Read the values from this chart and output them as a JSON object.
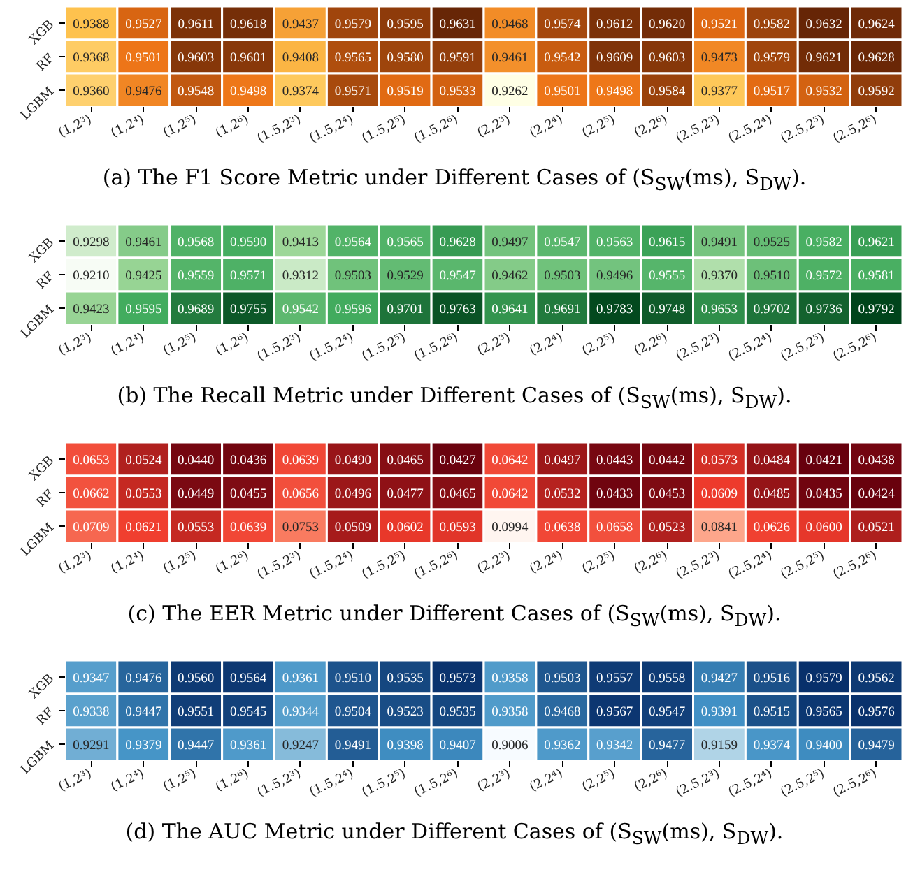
{
  "chart_data": [
    {
      "type": "heatmap",
      "title": "(a) The F1 Score Metric under Different Cases of (S$_{SW}$(ms), S$_{DW}$).",
      "colors": [
        "#ffffe5",
        "#fec44f",
        "#ec7014",
        "#662506"
      ],
      "categories": [
        "(1,2³)",
        "(1,2⁴)",
        "(1,2⁵)",
        "(1,2⁶)",
        "(1.5,2³)",
        "(1.5,2⁴)",
        "(1.5,2⁵)",
        "(1.5,2⁶)",
        "(2,2³)",
        "(2,2⁴)",
        "(2,2⁵)",
        "(2,2⁶)",
        "(2.5,2³)",
        "(2.5,2⁴)",
        "(2.5,2⁵)",
        "(2.5,2⁶)"
      ],
      "y_categories": [
        "XGB",
        "RF",
        "LGBM"
      ],
      "cells": [
        [
          0.9388,
          0.9527,
          0.9611,
          0.9618,
          0.9437,
          0.9579,
          0.9595,
          0.9631,
          0.9468,
          0.9574,
          0.9612,
          0.962,
          0.9521,
          0.9582,
          0.9632,
          0.9624
        ],
        [
          0.9368,
          0.9501,
          0.9603,
          0.9601,
          0.9408,
          0.9565,
          0.958,
          0.9591,
          0.9461,
          0.9542,
          0.9609,
          0.9603,
          0.9473,
          0.9579,
          0.9621,
          0.9628
        ],
        [
          0.936,
          0.9476,
          0.9548,
          0.9498,
          0.9374,
          0.9571,
          0.9519,
          0.9533,
          0.9262,
          0.9501,
          0.9498,
          0.9584,
          0.9377,
          0.9517,
          0.9532,
          0.9592
        ]
      ],
      "cell_labels": [
        [
          "0.9388",
          "0.9527",
          "0.9611",
          "0.9618",
          "0.9437",
          "0.9579",
          "0.9595",
          "0.9631",
          "0.9468",
          "0.9574",
          "0.9612",
          "0.9620",
          "0.9521",
          "0.9582",
          "0.9632",
          "0.9624"
        ],
        [
          "0.9368",
          "0.9501",
          "0.9603",
          "0.9601",
          "0.9408",
          "0.9565",
          "0.9580",
          "0.9591",
          "0.9461",
          "0.9542",
          "0.9609",
          "0.9603",
          "0.9473",
          "0.9579",
          "0.9621",
          "0.9628"
        ],
        [
          "0.9360",
          "0.9476",
          "0.9548",
          "0.9498",
          "0.9374",
          "0.9571",
          "0.9519",
          "0.9533",
          "0.9262",
          "0.9501",
          "0.9498",
          "0.9584",
          "0.9377",
          "0.9517",
          "0.9532",
          "0.9592"
        ]
      ]
    },
    {
      "type": "heatmap",
      "title": "(b) The Recall Metric under Different Cases of (S$_{SW}$(ms), S$_{DW}$).",
      "colors": [
        "#f7fcf5",
        "#a1d99b",
        "#41ab5d",
        "#00441b"
      ],
      "categories": [
        "(1,2³)",
        "(1,2⁴)",
        "(1,2⁵)",
        "(1,2⁶)",
        "(1.5,2³)",
        "(1.5,2⁴)",
        "(1.5,2⁵)",
        "(1.5,2⁶)",
        "(2,2³)",
        "(2,2⁴)",
        "(2,2⁵)",
        "(2,2⁶)",
        "(2.5,2³)",
        "(2.5,2⁴)",
        "(2.5,2⁵)",
        "(2.5,2⁶)"
      ],
      "y_categories": [
        "XGB",
        "RF",
        "LGBM"
      ],
      "cells": [
        [
          0.9298,
          0.9461,
          0.9568,
          0.959,
          0.9413,
          0.9564,
          0.9565,
          0.9628,
          0.9497,
          0.9547,
          0.9563,
          0.9615,
          0.9491,
          0.9525,
          0.9582,
          0.9621
        ],
        [
          0.921,
          0.9425,
          0.9559,
          0.9571,
          0.9312,
          0.9503,
          0.9529,
          0.9547,
          0.9462,
          0.9503,
          0.9496,
          0.9555,
          0.937,
          0.951,
          0.9572,
          0.9581
        ],
        [
          0.9423,
          0.9595,
          0.9689,
          0.9755,
          0.9542,
          0.9596,
          0.9701,
          0.9763,
          0.9641,
          0.9691,
          0.9783,
          0.9748,
          0.9653,
          0.9702,
          0.9736,
          0.9792
        ]
      ],
      "cell_labels": [
        [
          "0.9298",
          "0.9461",
          "0.9568",
          "0.9590",
          "0.9413",
          "0.9564",
          "0.9565",
          "0.9628",
          "0.9497",
          "0.9547",
          "0.9563",
          "0.9615",
          "0.9491",
          "0.9525",
          "0.9582",
          "0.9621"
        ],
        [
          "0.9210",
          "0.9425",
          "0.9559",
          "0.9571",
          "0.9312",
          "0.9503",
          "0.9529",
          "0.9547",
          "0.9462",
          "0.9503",
          "0.9496",
          "0.9555",
          "0.9370",
          "0.9510",
          "0.9572",
          "0.9581"
        ],
        [
          "0.9423",
          "0.9595",
          "0.9689",
          "0.9755",
          "0.9542",
          "0.9596",
          "0.9701",
          "0.9763",
          "0.9641",
          "0.9691",
          "0.9783",
          "0.9748",
          "0.9653",
          "0.9702",
          "0.9736",
          "0.9792"
        ]
      ]
    },
    {
      "type": "heatmap",
      "title": "(c) The EER Metric under Different Cases of (S$_{SW}$(ms), S$_{DW}$).",
      "colors": [
        "#67000d",
        "#ef3b2c",
        "#fc9272",
        "#fff5f0"
      ],
      "categories": [
        "(1,2³)",
        "(1,2⁴)",
        "(1,2⁵)",
        "(1,2⁶)",
        "(1.5,2³)",
        "(1.5,2⁴)",
        "(1.5,2⁵)",
        "(1.5,2⁶)",
        "(2,2³)",
        "(2,2⁴)",
        "(2,2⁵)",
        "(2,2⁶)",
        "(2.5,2³)",
        "(2.5,2⁴)",
        "(2.5,2⁵)",
        "(2.5,2⁶)"
      ],
      "y_categories": [
        "XGB",
        "RF",
        "LGBM"
      ],
      "cells": [
        [
          0.0653,
          0.0524,
          0.044,
          0.0436,
          0.0639,
          0.049,
          0.0465,
          0.0427,
          0.0642,
          0.0497,
          0.0443,
          0.0442,
          0.0573,
          0.0484,
          0.0421,
          0.0438
        ],
        [
          0.0662,
          0.0553,
          0.0449,
          0.0455,
          0.0656,
          0.0496,
          0.0477,
          0.0465,
          0.0642,
          0.0532,
          0.0433,
          0.0453,
          0.0609,
          0.0485,
          0.0435,
          0.0424
        ],
        [
          0.0709,
          0.0621,
          0.0553,
          0.0639,
          0.0753,
          0.0509,
          0.0602,
          0.0593,
          0.0994,
          0.0638,
          0.0658,
          0.0523,
          0.0841,
          0.0626,
          0.06,
          0.0521
        ]
      ],
      "cell_labels": [
        [
          "0.0653",
          "0.0524",
          "0.0440",
          "0.0436",
          "0.0639",
          "0.0490",
          "0.0465",
          "0.0427",
          "0.0642",
          "0.0497",
          "0.0443",
          "0.0442",
          "0.0573",
          "0.0484",
          "0.0421",
          "0.0438"
        ],
        [
          "0.0662",
          "0.0553",
          "0.0449",
          "0.0455",
          "0.0656",
          "0.0496",
          "0.0477",
          "0.0465",
          "0.0642",
          "0.0532",
          "0.0433",
          "0.0453",
          "0.0609",
          "0.0485",
          "0.0435",
          "0.0424"
        ],
        [
          "0.0709",
          "0.0621",
          "0.0553",
          "0.0639",
          "0.0753",
          "0.0509",
          "0.0602",
          "0.0593",
          "0.0994",
          "0.0638",
          "0.0658",
          "0.0523",
          "0.0841",
          "0.0626",
          "0.0600",
          "0.0521"
        ]
      ]
    },
    {
      "type": "heatmap",
      "title": "(d) The AUC Metric under Different Cases of (S$_{SW}$(ms), S$_{DW}$).",
      "colors": [
        "#f7fbff",
        "#9ecae1",
        "#4292c6",
        "#08306b"
      ],
      "categories": [
        "(1,2³)",
        "(1,2⁴)",
        "(1,2⁵)",
        "(1,2⁶)",
        "(1.5,2³)",
        "(1.5,2⁴)",
        "(1.5,2⁵)",
        "(1.5,2⁶)",
        "(2,2³)",
        "(2,2⁴)",
        "(2,2⁵)",
        "(2,2⁶)",
        "(2.5,2³)",
        "(2.5,2⁴)",
        "(2.5,2⁵)",
        "(2.5,2⁶)"
      ],
      "y_categories": [
        "XGB",
        "RF",
        "LGBM"
      ],
      "cells": [
        [
          0.9347,
          0.9476,
          0.956,
          0.9564,
          0.9361,
          0.951,
          0.9535,
          0.9573,
          0.9358,
          0.9503,
          0.9557,
          0.9558,
          0.9427,
          0.9516,
          0.9579,
          0.9562
        ],
        [
          0.9338,
          0.9447,
          0.9551,
          0.9545,
          0.9344,
          0.9504,
          0.9523,
          0.9535,
          0.9358,
          0.9468,
          0.9567,
          0.9547,
          0.9391,
          0.9515,
          0.9565,
          0.9576
        ],
        [
          0.9291,
          0.9379,
          0.9447,
          0.9361,
          0.9247,
          0.9491,
          0.9398,
          0.9407,
          0.9006,
          0.9362,
          0.9342,
          0.9477,
          0.9159,
          0.9374,
          0.94,
          0.9479
        ]
      ],
      "cell_labels": [
        [
          "0.9347",
          "0.9476",
          "0.9560",
          "0.9564",
          "0.9361",
          "0.9510",
          "0.9535",
          "0.9573",
          "0.9358",
          "0.9503",
          "0.9557",
          "0.9558",
          "0.9427",
          "0.9516",
          "0.9579",
          "0.9562"
        ],
        [
          "0.9338",
          "0.9447",
          "0.9551",
          "0.9545",
          "0.9344",
          "0.9504",
          "0.9523",
          "0.9535",
          "0.9358",
          "0.9468",
          "0.9567",
          "0.9547",
          "0.9391",
          "0.9515",
          "0.9565",
          "0.9576"
        ],
        [
          "0.9291",
          "0.9379",
          "0.9447",
          "0.9361",
          "0.9247",
          "0.9491",
          "0.9398",
          "0.9407",
          "0.9006",
          "0.9362",
          "0.9342",
          "0.9477",
          "0.9159",
          "0.9374",
          "0.9400",
          "0.9479"
        ]
      ]
    }
  ]
}
